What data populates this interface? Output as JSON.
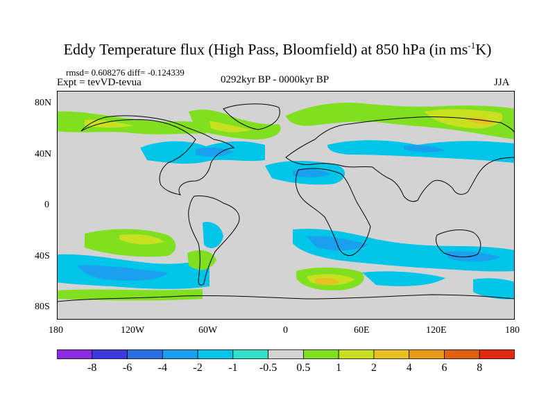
{
  "title": {
    "main": "Eddy Temperature flux (High Pass, Bloomfield) at 850 hPa (in ms",
    "sup": "-1",
    "tail": "K)"
  },
  "stats": "rmsd= 0.608276 diff= -0.124339",
  "experiment": "Expt = tevVD-tevua",
  "period": "0292kyr BP - 0000kyr BP",
  "season": "JJA",
  "lat_labels": [
    "80N",
    "40N",
    "0",
    "40S",
    "80S"
  ],
  "lon_labels": [
    "180",
    "120W",
    "60W",
    "0",
    "60E",
    "120E",
    "180"
  ],
  "colorbar": {
    "labels": [
      "-8",
      "-6",
      "-4",
      "-2",
      "-1",
      "-0.5",
      "0.5",
      "1",
      "2",
      "4",
      "6",
      "8"
    ],
    "colors": [
      "#8b2be2",
      "#3a3ae0",
      "#2a6ee6",
      "#1aa0ee",
      "#00c4e8",
      "#30e0c8",
      "#d3d3d3",
      "#80e020",
      "#c8e020",
      "#e8c020",
      "#e89a18",
      "#e06010",
      "#e02a10"
    ]
  },
  "colors": {
    "land_outline": "#000000",
    "background": "#d3d3d3"
  }
}
